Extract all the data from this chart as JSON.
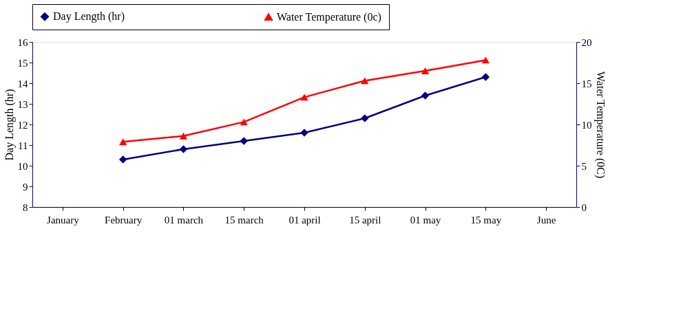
{
  "chart_data": {
    "type": "line",
    "categories": [
      "January",
      "February",
      "01 march",
      "15 march",
      "01 april",
      "15 april",
      "01 may",
      "15 may",
      "June"
    ],
    "ylabel": "Day Length (hr)",
    "y2label": "Water Temperature (0C)",
    "ylim": [
      8,
      16
    ],
    "yticks": [
      8,
      9,
      10,
      11,
      12,
      13,
      14,
      15,
      16
    ],
    "y2lim": [
      0,
      20
    ],
    "y2ticks": [
      0,
      5,
      10,
      15,
      20
    ],
    "grid": false,
    "legend": "top",
    "line_style": "solid",
    "series": [
      {
        "name": "Day Length (hr)",
        "color": "#000080",
        "marker": "diamond",
        "values": [
          null,
          10.3,
          10.8,
          11.2,
          11.6,
          12.3,
          13.4,
          14.3,
          null
        ]
      },
      {
        "name": "Water Temperature (0c)",
        "color": "#ff0000",
        "marker": "triangle",
        "axis": "y2",
        "values": [
          null,
          7.9,
          8.6,
          10.3,
          13.3,
          15.3,
          16.5,
          17.8,
          null
        ]
      }
    ]
  }
}
